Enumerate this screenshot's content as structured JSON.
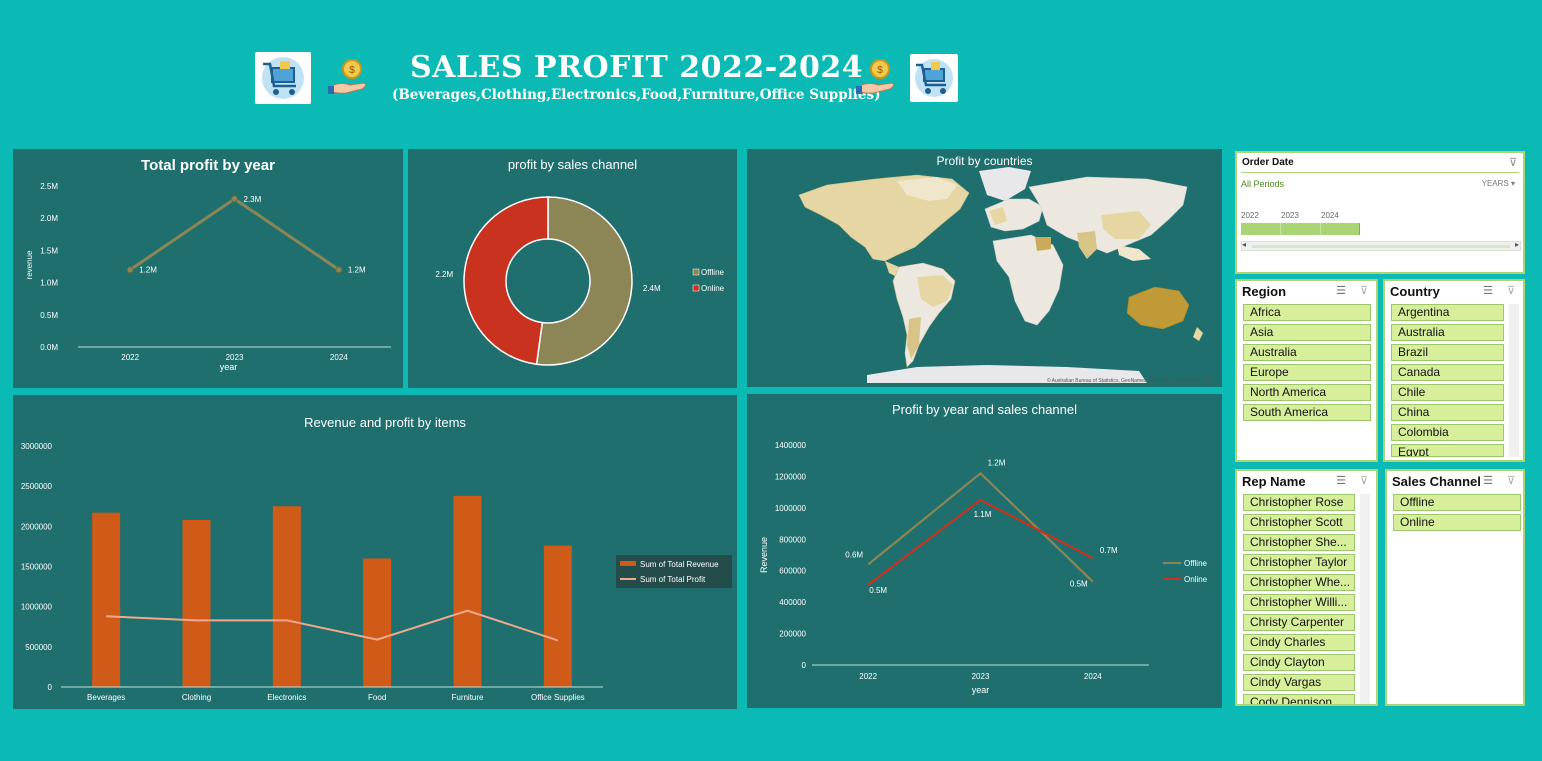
{
  "header": {
    "title": "SALES PROFIT 2022-2024",
    "subtitle": "(Beverages,Clothing,Electronics,Food,Furniture,Office Supplies)",
    "left_icons": [
      "shopping-cart-icon",
      "coin-hand-icon"
    ],
    "right_icons": [
      "coin-hand-icon",
      "shopping-cart-icon"
    ]
  },
  "colors": {
    "background": "#0bbab5",
    "panel": "#1e6f6d",
    "offline": "#8c8656",
    "online": "#c9321f",
    "revenue_bar": "#d05a17",
    "profit_line": "#f0a88f",
    "slicer_item": "#d7ee9b",
    "timeline_bar": "#a9d574"
  },
  "charts": {
    "profit_by_year": {
      "title": "Total profit by year",
      "chart_data": {
        "type": "line",
        "title": "Total profit by year",
        "xlabel": "year",
        "ylabel": "revenue",
        "categories": [
          "2022",
          "2023",
          "2024"
        ],
        "values": [
          1.2,
          2.3,
          1.2
        ],
        "value_labels": [
          "1.2M",
          "2.3M",
          "1.2M"
        ],
        "y_ticks": [
          "0.0M",
          "0.5M",
          "1.0M",
          "1.5M",
          "2.0M",
          "2.5M"
        ],
        "ylim": [
          0,
          2.5
        ],
        "line_color": "#8c8656",
        "grid": false
      }
    },
    "profit_by_channel": {
      "title": "profit by sales channel",
      "chart_data": {
        "type": "pie",
        "title": "profit by sales channel",
        "labels": [
          "Offline",
          "Online"
        ],
        "values": [
          2.4,
          2.2
        ],
        "value_labels": [
          "2.4M",
          "2.2M"
        ],
        "colors": [
          "#8c8656",
          "#c9321f"
        ],
        "legend": "right"
      }
    },
    "profit_by_countries": {
      "title": "Profit by countries",
      "attribution": "© Australian Bureau of Statistics, GeoNames, Microsoft, Navinfo, Open Pla..."
    },
    "revenue_profit_items": {
      "title": "Revenue and profit by items",
      "chart_data": {
        "type": "bar",
        "title": "Revenue and profit by items",
        "categories": [
          "Beverages",
          "Clothing",
          "Electronics",
          "Food",
          "Furniture",
          "Office Supplies"
        ],
        "series": [
          {
            "name": "Sum of Total Revenue",
            "type": "bar",
            "values": [
              2170000,
              2080000,
              2250000,
              1600000,
              2380000,
              1760000
            ]
          },
          {
            "name": "Sum of Total Profit",
            "type": "line",
            "values": [
              880000,
              830000,
              830000,
              590000,
              950000,
              580000
            ]
          }
        ],
        "y_ticks": [
          "0",
          "500000",
          "1000000",
          "1500000",
          "2000000",
          "2500000",
          "3000000"
        ],
        "ylim": [
          0,
          3000000
        ],
        "legend": "right",
        "grid": false
      }
    },
    "profit_year_channel": {
      "title": "Profit by year and sales channel",
      "chart_data": {
        "type": "line",
        "title": "Profit by year and sales channel",
        "xlabel": "year",
        "ylabel": "Revenue",
        "categories": [
          "2022",
          "2023",
          "2024"
        ],
        "series": [
          {
            "name": "Offline",
            "values": [
              640000,
              1220000,
              530000
            ],
            "labels": [
              "0.6M",
              "1.2M",
              "0.5M"
            ]
          },
          {
            "name": "Online",
            "values": [
              510000,
              1050000,
              680000
            ],
            "labels": [
              "0.5M",
              "1.1M",
              "0.7M"
            ]
          }
        ],
        "y_ticks": [
          "0",
          "200000",
          "400000",
          "600000",
          "800000",
          "1000000",
          "1200000",
          "1400000"
        ],
        "ylim": [
          0,
          1400000
        ],
        "legend": "right",
        "grid": false
      }
    }
  },
  "slicers": {
    "order_date": {
      "title": "Order Date",
      "period": "All Periods",
      "unit": "YEARS",
      "years": [
        "2022",
        "2023",
        "2024"
      ]
    },
    "region": {
      "title": "Region",
      "items": [
        "Africa",
        "Asia",
        "Australia",
        "Europe",
        "North America",
        "South America"
      ]
    },
    "country": {
      "title": "Country",
      "items": [
        "Argentina",
        "Australia",
        "Brazil",
        "Canada",
        "Chile",
        "China",
        "Colombia",
        "Egypt"
      ]
    },
    "rep_name": {
      "title": "Rep Name",
      "items": [
        "Christopher Rose",
        "Christopher Scott",
        "Christopher She...",
        "Christopher Taylor",
        "Christopher Whe...",
        "Christopher Willi...",
        "Christy Carpenter",
        "Cindy Charles",
        "Cindy Clayton",
        "Cindy Vargas",
        "Cody Dennison"
      ]
    },
    "sales_channel": {
      "title": "Sales Channel",
      "items": [
        "Offline",
        "Online"
      ]
    }
  }
}
